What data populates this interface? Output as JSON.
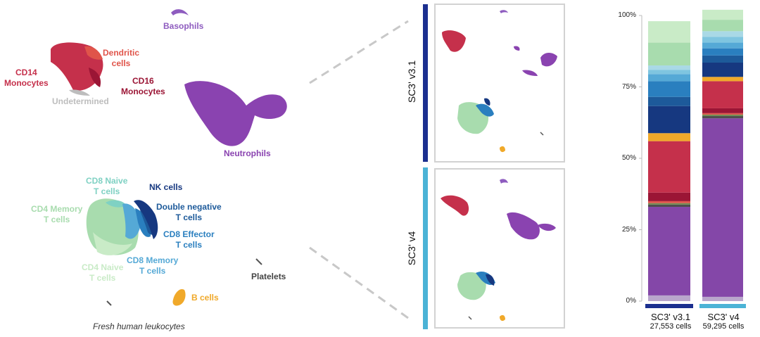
{
  "colors": {
    "cd14_monocytes": "#c5304b",
    "dendritic": "#e0544a",
    "cd16_monocytes": "#9b1535",
    "undetermined": "#bdbdbd",
    "basophils": "#8e5cbf",
    "neutrophils": "#8a43b0",
    "nk": "#163880",
    "double_negative": "#1d5a9a",
    "cd8_effector": "#2a7fbf",
    "cd8_memory": "#55a9d6",
    "cd8_naive": "#7fd1c3",
    "cd4_memory": "#a8dcae",
    "cd4_naive": "#c9ebc7",
    "platelets": "#555555",
    "b_cells": "#f0a92a",
    "v31_accent": "#1b2f8f",
    "v4_accent": "#4bb3d6"
  },
  "umap_labels": {
    "basophils": "Basophils",
    "dendritic_1": "Dendritic",
    "dendritic_2": "cells",
    "cd14_1": "CD14",
    "cd14_2": "Monocytes",
    "cd16_1": "CD16",
    "cd16_2": "Monocytes",
    "undetermined": "Undetermined",
    "neutrophils": "Neutrophils",
    "cd8_naive_1": "CD8 Naive",
    "cd8_naive_2": "T cells",
    "nk": "NK cells",
    "cd4_memory_1": "CD4 Memory",
    "cd4_memory_2": "T cells",
    "double_negative_1": "Double negative",
    "double_negative_2": "T cells",
    "cd8_effector_1": "CD8 Effector",
    "cd8_effector_2": "T cells",
    "cd8_memory_1": "CD8 Memory",
    "cd8_memory_2": "T cells",
    "cd4_naive_1": "CD4 Naive",
    "cd4_naive_2": "T cells",
    "platelets": "Platelets",
    "b_cells": "B cells",
    "caption": "Fresh human leukocytes"
  },
  "panels": {
    "top_label": "SC3' v3.1",
    "bottom_label": "SC3' v4"
  },
  "chart_data": {
    "type": "bar",
    "stacked": true,
    "categories": [
      "SC3' v3.1",
      "SC3' v4"
    ],
    "category_sublabels": [
      "27,553 cells",
      "59,295 cells"
    ],
    "ylim": [
      0,
      100
    ],
    "yticks": [
      "0%",
      "25%",
      "50%",
      "75%",
      "100%"
    ],
    "series": [
      {
        "color": "#b9a6cc",
        "values": [
          2,
          1.5
        ]
      },
      {
        "color": "#8447a8",
        "values": [
          31,
          62.5
        ]
      },
      {
        "color": "#4f4f4f",
        "values": [
          0.8,
          0.8
        ]
      },
      {
        "color": "#6e8a4e",
        "values": [
          0.5,
          0.5
        ]
      },
      {
        "color": "#e0544a",
        "values": [
          0.7,
          0.5
        ]
      },
      {
        "color": "#9b1535",
        "values": [
          3,
          1.7
        ]
      },
      {
        "color": "#c5304b",
        "values": [
          18,
          9.5
        ]
      },
      {
        "color": "#f0a92a",
        "values": [
          2.8,
          1.5
        ]
      },
      {
        "color": "#163880",
        "values": [
          9.5,
          5
        ]
      },
      {
        "color": "#1d5a9a",
        "values": [
          3.2,
          2.5
        ]
      },
      {
        "color": "#2a7fbf",
        "values": [
          5.5,
          2.5
        ]
      },
      {
        "color": "#55a9d6",
        "values": [
          2.5,
          2
        ]
      },
      {
        "color": "#7fc5e0",
        "values": [
          1.5,
          2
        ]
      },
      {
        "color": "#a9d9e6",
        "values": [
          1.5,
          2
        ]
      },
      {
        "color": "#a8dcae",
        "values": [
          8,
          4
        ]
      },
      {
        "color": "#c9ebc7",
        "values": [
          7.5,
          3.5
        ]
      }
    ]
  }
}
